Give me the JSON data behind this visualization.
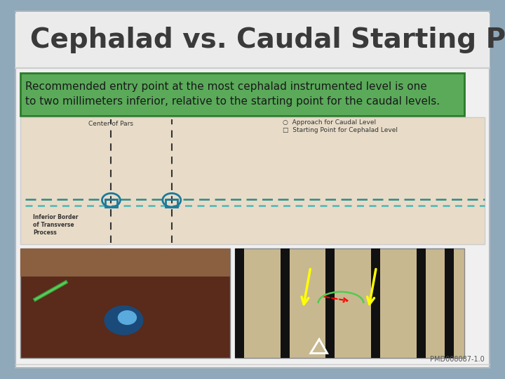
{
  "title": "Cephalad vs. Caudal Starting Points",
  "subtitle": "Recommended entry point at the most cephalad instrumented level is one\nto two millimeters inferior, relative to the starting point for the caudal levels.",
  "background_color": "#8fa8ba",
  "slide_bg": "#f0f0f0",
  "title_color": "#3a3a3a",
  "subtitle_bg": "#5aaa5a",
  "subtitle_text_color": "#1a1a1a",
  "watermark": "PMD008087-1.0",
  "title_fontsize": 28,
  "subtitle_fontsize": 11
}
